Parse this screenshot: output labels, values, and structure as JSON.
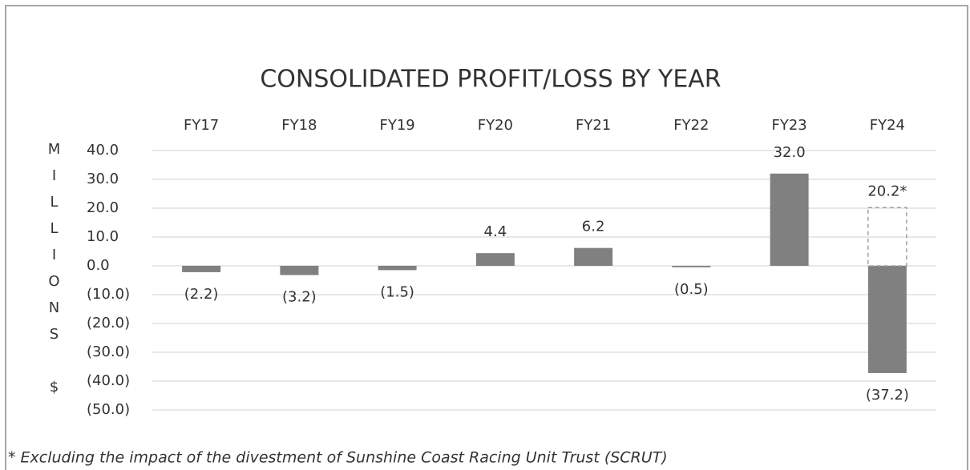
{
  "chart_data": {
    "type": "bar",
    "title": "CONSOLIDATED PROFIT/LOSS BY YEAR",
    "y_label": "MILLIONS $",
    "categories": [
      "FY17",
      "FY18",
      "FY19",
      "FY20",
      "FY21",
      "FY22",
      "FY23",
      "FY24"
    ],
    "values": [
      -2.2,
      -3.2,
      -1.5,
      4.4,
      6.2,
      -0.5,
      32.0,
      -37.2
    ],
    "value_labels": [
      "(2.2)",
      "(3.2)",
      "(1.5)",
      "4.4",
      "6.2",
      "(0.5)",
      "32.0",
      "(37.2)"
    ],
    "adjusted_values": [
      null,
      null,
      null,
      null,
      null,
      null,
      null,
      20.2
    ],
    "adjusted_value_labels": [
      null,
      null,
      null,
      null,
      null,
      null,
      null,
      "20.2*"
    ],
    "color": "#808080",
    "ylim": [
      -50,
      40
    ],
    "yticks": [
      {
        "value": 40,
        "label": "40.0"
      },
      {
        "value": 30,
        "label": "30.0"
      },
      {
        "value": 20,
        "label": "20.0"
      },
      {
        "value": 10,
        "label": "10.0"
      },
      {
        "value": 0,
        "label": "0.0"
      },
      {
        "value": -10,
        "label": "(10.0)"
      },
      {
        "value": -20,
        "label": "(20.0)"
      },
      {
        "value": -30,
        "label": "(30.0)"
      },
      {
        "value": -40,
        "label": "(40.0)"
      },
      {
        "value": -50,
        "label": "(50.0)"
      }
    ],
    "grid": true,
    "footnote": "* Excluding the impact of the divestment of Sunshine Coast Racing Unit Trust (SCRUT)"
  }
}
